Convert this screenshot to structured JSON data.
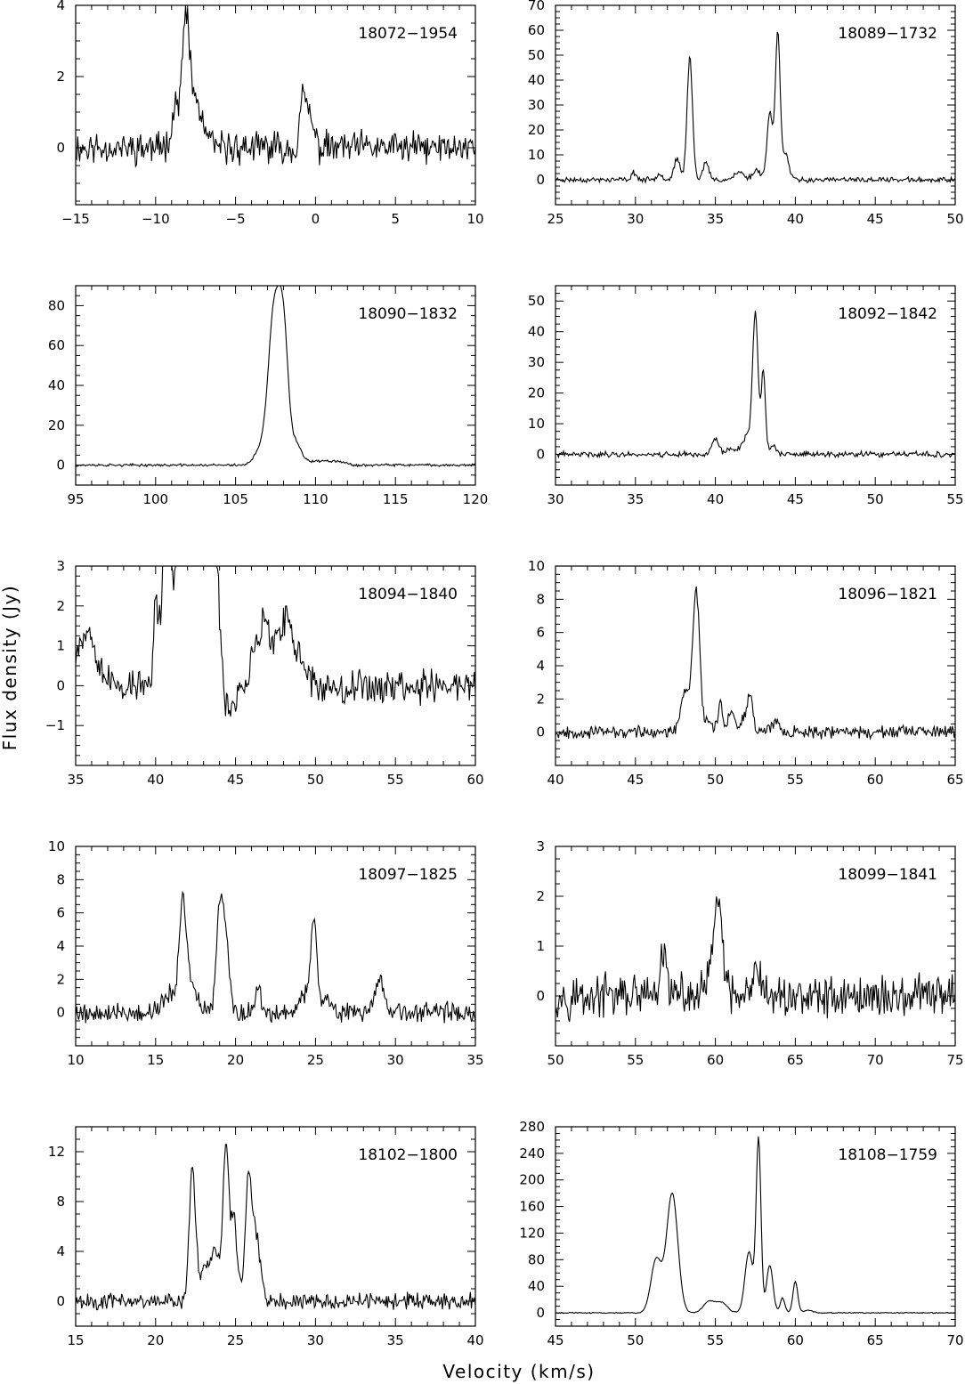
{
  "figure": {
    "xlabel": "Velocity (km/s)",
    "ylabel": "Flux density (Jy)"
  },
  "chart_data": [
    {
      "type": "line",
      "title": "18072−1954",
      "xlim": [
        -15,
        10
      ],
      "ylim": [
        -1.6,
        4
      ],
      "xticks": [
        -15,
        -10,
        -5,
        0,
        5,
        10
      ],
      "yticks": [
        0,
        2,
        4
      ],
      "peaks": [
        [
          -8.6,
          1.3,
          0.35
        ],
        [
          -8.1,
          2.9,
          0.18
        ],
        [
          -7.7,
          1.2,
          0.3
        ],
        [
          -7.2,
          0.6,
          0.4
        ],
        [
          -0.8,
          1.2,
          0.18
        ],
        [
          -0.4,
          0.9,
          0.25
        ]
      ],
      "baseline": 0,
      "noise": 0.35,
      "seed": 11,
      "x": [
        -15,
        -10,
        -8.1,
        -5,
        -0.8,
        5,
        10
      ],
      "y": [
        0,
        0.2,
        3.4,
        0,
        1.8,
        0,
        0
      ]
    },
    {
      "type": "line",
      "title": "18089−1732",
      "xlim": [
        25,
        50
      ],
      "ylim": [
        -10,
        70
      ],
      "xticks": [
        25,
        30,
        35,
        40,
        45,
        50
      ],
      "yticks": [
        0,
        10,
        20,
        30,
        40,
        50,
        60,
        70
      ],
      "peaks": [
        [
          29.9,
          3,
          0.15
        ],
        [
          31.5,
          3,
          0.15
        ],
        [
          32.6,
          8,
          0.2
        ],
        [
          33.4,
          49,
          0.17
        ],
        [
          34.4,
          7,
          0.18
        ],
        [
          36.5,
          3,
          0.3
        ],
        [
          37.6,
          4,
          0.25
        ],
        [
          38.4,
          27,
          0.17
        ],
        [
          38.9,
          60,
          0.15
        ],
        [
          39.4,
          10,
          0.2
        ]
      ],
      "baseline": 0,
      "noise": 0.8,
      "seed": 23,
      "x": [
        25,
        30,
        33.4,
        34.4,
        38.4,
        38.9,
        40,
        45,
        50
      ],
      "y": [
        0,
        1,
        50,
        7,
        30,
        62,
        1,
        0,
        0
      ]
    },
    {
      "type": "line",
      "title": "18090−1832",
      "xlim": [
        95,
        120
      ],
      "ylim": [
        -10,
        90
      ],
      "xticks": [
        95,
        100,
        105,
        110,
        115,
        120
      ],
      "yticks": [
        0,
        20,
        40,
        60,
        80
      ],
      "peaks": [
        [
          107.4,
          74,
          0.35
        ],
        [
          108.0,
          64,
          0.3
        ],
        [
          106.6,
          8,
          0.4
        ],
        [
          108.8,
          10,
          0.3
        ],
        [
          109.5,
          2,
          0.4
        ],
        [
          110.5,
          2,
          0.4
        ],
        [
          111.4,
          2,
          0.4
        ]
      ],
      "baseline": 0,
      "noise": 0.5,
      "seed": 37,
      "x": [
        95,
        100,
        105,
        107.4,
        108.1,
        110,
        115,
        120
      ],
      "y": [
        0,
        0,
        0,
        77,
        67,
        1,
        0,
        0
      ]
    },
    {
      "type": "line",
      "title": "18092−1842",
      "xlim": [
        30,
        55
      ],
      "ylim": [
        -10,
        55
      ],
      "xticks": [
        30,
        35,
        40,
        45,
        50,
        55
      ],
      "yticks": [
        0,
        10,
        20,
        30,
        40,
        50
      ],
      "peaks": [
        [
          40.0,
          5,
          0.2
        ],
        [
          41.1,
          2,
          0.4
        ],
        [
          42.0,
          6,
          0.25
        ],
        [
          42.5,
          46,
          0.17
        ],
        [
          43.0,
          27,
          0.13
        ],
        [
          43.6,
          3,
          0.2
        ]
      ],
      "baseline": 0,
      "noise": 0.7,
      "seed": 41,
      "x": [
        30,
        35,
        40,
        42.5,
        43,
        45,
        50,
        55
      ],
      "y": [
        0,
        1,
        6,
        49,
        32,
        0,
        0,
        0
      ]
    },
    {
      "type": "line",
      "title": "18094−1840",
      "xlim": [
        35,
        60
      ],
      "ylim": [
        -2,
        3
      ],
      "xticks": [
        35,
        40,
        45,
        50,
        55,
        60
      ],
      "yticks": [
        -1,
        0,
        1,
        2,
        3
      ],
      "peaks": [
        [
          35.3,
          0.9,
          0.6
        ],
        [
          36.0,
          0.8,
          0.5
        ],
        [
          40.0,
          2.2,
          0.1
        ],
        [
          40.6,
          3.5,
          0.25
        ],
        [
          41.3,
          1.2,
          0.25
        ],
        [
          42.2,
          5.0,
          0.7
        ],
        [
          43.5,
          4.5,
          0.4
        ],
        [
          44.4,
          -0.8,
          0.4
        ],
        [
          46.2,
          0.9,
          0.25
        ],
        [
          46.8,
          1.8,
          0.2
        ],
        [
          47.5,
          1.2,
          0.3
        ],
        [
          48.2,
          1.6,
          0.25
        ],
        [
          49.0,
          0.8,
          0.4
        ]
      ],
      "baseline": 0,
      "noise": 0.35,
      "seed": 53,
      "x": [
        35,
        40,
        44,
        46.8,
        48.2,
        50,
        55,
        60
      ],
      "y": [
        0,
        2.8,
        3,
        2.3,
        2,
        0,
        0,
        0
      ]
    },
    {
      "type": "line",
      "title": "18096−1821",
      "xlim": [
        40,
        65
      ],
      "ylim": [
        -2,
        10
      ],
      "xticks": [
        40,
        45,
        50,
        55,
        60,
        65
      ],
      "yticks": [
        0,
        2,
        4,
        6,
        8,
        10
      ],
      "peaks": [
        [
          48.1,
          2.5,
          0.25
        ],
        [
          48.8,
          8.6,
          0.22
        ],
        [
          49.5,
          0.7,
          0.2
        ],
        [
          50.3,
          1.8,
          0.15
        ],
        [
          51.0,
          1.4,
          0.2
        ],
        [
          52.0,
          1.3,
          0.3
        ],
        [
          52.2,
          1.3,
          0.15
        ],
        [
          53.8,
          0.6,
          0.3
        ]
      ],
      "baseline": 0,
      "noise": 0.28,
      "seed": 67,
      "x": [
        40,
        45,
        48.8,
        50.3,
        52.2,
        55,
        60,
        65
      ],
      "y": [
        0,
        0,
        9.2,
        2.2,
        2.9,
        0.5,
        0.8,
        0
      ]
    },
    {
      "type": "line",
      "title": "18097−1825",
      "xlim": [
        10,
        35
      ],
      "ylim": [
        -2,
        10
      ],
      "xticks": [
        10,
        15,
        20,
        25,
        30,
        35
      ],
      "yticks": [
        0,
        2,
        4,
        6,
        8,
        10
      ],
      "peaks": [
        [
          15.9,
          1.2,
          0.4
        ],
        [
          16.7,
          6.8,
          0.22
        ],
        [
          17.3,
          1.5,
          0.3
        ],
        [
          19.0,
          6.4,
          0.2
        ],
        [
          19.4,
          4.6,
          0.2
        ],
        [
          21.4,
          1.8,
          0.15
        ],
        [
          24.4,
          1.2,
          0.3
        ],
        [
          24.9,
          5.3,
          0.18
        ],
        [
          25.6,
          1.0,
          0.3
        ],
        [
          29.0,
          2.2,
          0.25
        ]
      ],
      "baseline": 0,
      "noise": 0.45,
      "seed": 79,
      "x": [
        10,
        15,
        16.7,
        19.1,
        21.4,
        24.9,
        29,
        35
      ],
      "y": [
        0,
        0,
        7.7,
        7.9,
        2.8,
        6.2,
        3,
        0
      ]
    },
    {
      "type": "line",
      "title": "18099−1841",
      "xlim": [
        50,
        75
      ],
      "ylim": [
        -1,
        3
      ],
      "xticks": [
        50,
        55,
        60,
        65,
        70,
        75
      ],
      "yticks": [
        0,
        1,
        2,
        3
      ],
      "peaks": [
        [
          56.8,
          0.8,
          0.2
        ],
        [
          59.8,
          0.5,
          0.3
        ],
        [
          60.2,
          1.9,
          0.22
        ],
        [
          62.6,
          0.6,
          0.15
        ]
      ],
      "baseline": 0,
      "noise": 0.33,
      "seed": 97,
      "x": [
        50,
        55,
        56.8,
        60.2,
        65,
        70,
        75
      ],
      "y": [
        0,
        0,
        1.3,
        2.3,
        0.5,
        0.6,
        0
      ]
    },
    {
      "type": "line",
      "title": "18102−1800",
      "xlim": [
        15,
        40
      ],
      "ylim": [
        -2,
        14
      ],
      "xticks": [
        15,
        20,
        25,
        30,
        35,
        40
      ],
      "yticks": [
        0,
        4,
        8,
        12
      ],
      "peaks": [
        [
          22.3,
          10.5,
          0.2
        ],
        [
          23.0,
          2,
          0.3
        ],
        [
          23.7,
          3.8,
          0.35
        ],
        [
          24.4,
          12,
          0.18
        ],
        [
          24.9,
          6.6,
          0.2
        ],
        [
          25.8,
          9.6,
          0.2
        ],
        [
          26.3,
          5.3,
          0.25
        ]
      ],
      "baseline": 0,
      "noise": 0.5,
      "seed": 101,
      "x": [
        15,
        20,
        22.3,
        24.4,
        25.8,
        30,
        35,
        40
      ],
      "y": [
        0,
        0,
        11.5,
        12.8,
        10.1,
        0,
        0.5,
        0
      ]
    },
    {
      "type": "line",
      "title": "18108−1759",
      "xlim": [
        45,
        70
      ],
      "ylim": [
        -20,
        280
      ],
      "xticks": [
        45,
        50,
        55,
        60,
        65,
        70
      ],
      "yticks": [
        0,
        40,
        80,
        120,
        160,
        200,
        240,
        280
      ],
      "peaks": [
        [
          51.3,
          80,
          0.33
        ],
        [
          52.3,
          180,
          0.35
        ],
        [
          54.6,
          17,
          0.35
        ],
        [
          55.4,
          15,
          0.35
        ],
        [
          57.1,
          92,
          0.25
        ],
        [
          57.7,
          260,
          0.15
        ],
        [
          58.4,
          72,
          0.2
        ],
        [
          59.2,
          22,
          0.15
        ],
        [
          60.0,
          47,
          0.15
        ],
        [
          60.8,
          4,
          0.3
        ]
      ],
      "baseline": 0,
      "noise": 0.6,
      "seed": 113,
      "x": [
        45,
        50,
        51.3,
        52.3,
        55,
        57.7,
        60,
        65,
        70
      ],
      "y": [
        0,
        0,
        90,
        188,
        18,
        265,
        50,
        0,
        0
      ]
    }
  ]
}
